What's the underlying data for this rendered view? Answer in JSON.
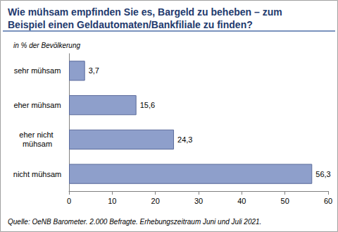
{
  "chart_data": {
    "type": "bar",
    "orientation": "horizontal",
    "title": "Wie mühsam empfinden Sie es, Bargeld zu beheben – zum Beispiel einen Geldautomaten/Bankfiliale zu finden?",
    "subtitle": "in % der Bevölkerung",
    "source": "Quelle: OeNB Barometer. 2.000 Befragte. Erhebungszeitraum Juni und Juli 2021.",
    "categories": [
      "sehr mühsam",
      "eher mühsam",
      "eher nicht mühsam",
      "nicht mühsam"
    ],
    "values": [
      3.7,
      15.6,
      24.3,
      56.3
    ],
    "value_labels": [
      "3,7",
      "15,6",
      "24,3",
      "56,3"
    ],
    "data_labels": true,
    "color": "#8e9fcb",
    "xlim": [
      0,
      60
    ],
    "xticks": [
      0,
      10,
      20,
      30,
      40,
      50,
      60
    ],
    "grid": false
  }
}
